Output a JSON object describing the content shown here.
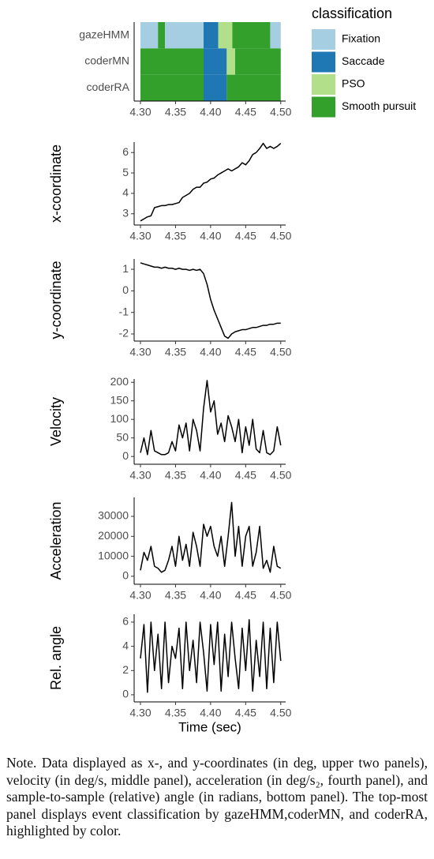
{
  "chart_data": [
    {
      "type": "tile",
      "legend_title": "classification",
      "categories": [
        "gazeHMM",
        "coderMN",
        "coderRA"
      ],
      "classes": [
        {
          "name": "Fixation",
          "color": "#a6cee3"
        },
        {
          "name": "Saccade",
          "color": "#1f78b4"
        },
        {
          "name": "PSO",
          "color": "#b2df8a"
        },
        {
          "name": "Smooth pursuit",
          "color": "#33a02c"
        }
      ],
      "rows": [
        {
          "segments": [
            {
              "start": 4.3,
              "end": 4.325,
              "class": 0
            },
            {
              "start": 4.325,
              "end": 4.335,
              "class": 3
            },
            {
              "start": 4.335,
              "end": 4.39,
              "class": 0
            },
            {
              "start": 4.39,
              "end": 4.411,
              "class": 1
            },
            {
              "start": 4.411,
              "end": 4.431,
              "class": 2
            },
            {
              "start": 4.431,
              "end": 4.485,
              "class": 3
            },
            {
              "start": 4.485,
              "end": 4.5,
              "class": 0
            }
          ]
        },
        {
          "segments": [
            {
              "start": 4.3,
              "end": 4.39,
              "class": 3
            },
            {
              "start": 4.39,
              "end": 4.423,
              "class": 1
            },
            {
              "start": 4.423,
              "end": 4.435,
              "class": 2
            },
            {
              "start": 4.435,
              "end": 4.5,
              "class": 3
            }
          ]
        },
        {
          "segments": [
            {
              "start": 4.3,
              "end": 4.39,
              "class": 3
            },
            {
              "start": 4.39,
              "end": 4.423,
              "class": 1
            },
            {
              "start": 4.423,
              "end": 4.5,
              "class": 3
            }
          ]
        }
      ],
      "xlim": [
        4.291,
        4.507
      ],
      "xticks": [
        {
          "value": 4.3,
          "label": "4.30"
        },
        {
          "value": 4.35,
          "label": "4.35"
        },
        {
          "value": 4.4,
          "label": "4.40"
        },
        {
          "value": 4.45,
          "label": "4.45"
        },
        {
          "value": 4.5,
          "label": "4.50"
        }
      ]
    },
    {
      "type": "line",
      "ylabel": "x-coordinate",
      "color": "#000000",
      "x": [
        4.3,
        4.305,
        4.31,
        4.315,
        4.32,
        4.325,
        4.33,
        4.335,
        4.34,
        4.345,
        4.35,
        4.355,
        4.36,
        4.365,
        4.37,
        4.375,
        4.38,
        4.385,
        4.39,
        4.395,
        4.4,
        4.405,
        4.41,
        4.415,
        4.42,
        4.425,
        4.43,
        4.435,
        4.44,
        4.445,
        4.45,
        4.455,
        4.46,
        4.465,
        4.47,
        4.475,
        4.48,
        4.485,
        4.49,
        4.495,
        4.5
      ],
      "values": [
        2.65,
        2.75,
        2.85,
        2.9,
        3.3,
        3.35,
        3.4,
        3.4,
        3.45,
        3.45,
        3.5,
        3.55,
        3.8,
        3.9,
        4.0,
        4.2,
        4.3,
        4.3,
        4.5,
        4.55,
        4.7,
        4.75,
        4.9,
        5.0,
        5.1,
        5.2,
        5.1,
        5.2,
        5.3,
        5.5,
        5.4,
        5.6,
        5.9,
        6.0,
        6.2,
        6.45,
        6.2,
        6.3,
        6.2,
        6.3,
        6.45
      ],
      "xlim": [
        4.291,
        4.507
      ],
      "xticks": [
        {
          "value": 4.3,
          "label": "4.30"
        },
        {
          "value": 4.35,
          "label": "4.35"
        },
        {
          "value": 4.4,
          "label": "4.40"
        },
        {
          "value": 4.45,
          "label": "4.45"
        },
        {
          "value": 4.5,
          "label": "4.50"
        }
      ],
      "ylim": [
        2.45,
        6.51
      ],
      "yticks": [
        3,
        4,
        5,
        6
      ]
    },
    {
      "type": "line",
      "ylabel": "y-coordinate",
      "color": "#000000",
      "x": [
        4.3,
        4.305,
        4.31,
        4.315,
        4.32,
        4.325,
        4.33,
        4.335,
        4.34,
        4.345,
        4.35,
        4.355,
        4.36,
        4.365,
        4.37,
        4.375,
        4.38,
        4.385,
        4.39,
        4.395,
        4.4,
        4.405,
        4.41,
        4.415,
        4.42,
        4.425,
        4.43,
        4.435,
        4.44,
        4.445,
        4.45,
        4.455,
        4.46,
        4.465,
        4.47,
        4.475,
        4.48,
        4.485,
        4.49,
        4.495,
        4.5
      ],
      "values": [
        1.3,
        1.25,
        1.2,
        1.15,
        1.1,
        1.1,
        1.05,
        1.1,
        1.05,
        1.05,
        1.0,
        1.05,
        1.0,
        1.0,
        0.95,
        1.0,
        0.95,
        1.0,
        0.8,
        0.3,
        -0.4,
        -0.9,
        -1.3,
        -1.7,
        -2.1,
        -2.2,
        -2.0,
        -1.9,
        -1.85,
        -1.8,
        -1.8,
        -1.75,
        -1.7,
        -1.7,
        -1.65,
        -1.6,
        -1.6,
        -1.55,
        -1.55,
        -1.5,
        -1.5
      ],
      "xlim": [
        4.291,
        4.507
      ],
      "xticks": [
        {
          "value": 4.3,
          "label": "4.30"
        },
        {
          "value": 4.35,
          "label": "4.35"
        },
        {
          "value": 4.4,
          "label": "4.40"
        },
        {
          "value": 4.45,
          "label": "4.45"
        },
        {
          "value": 4.5,
          "label": "4.50"
        }
      ],
      "ylim": [
        -2.33,
        1.48
      ],
      "yticks": [
        1,
        0,
        -1,
        -2
      ]
    },
    {
      "type": "line",
      "ylabel": "Velocity",
      "color": "#000000",
      "x": [
        4.3,
        4.305,
        4.31,
        4.315,
        4.32,
        4.325,
        4.33,
        4.335,
        4.34,
        4.345,
        4.35,
        4.355,
        4.36,
        4.365,
        4.37,
        4.375,
        4.38,
        4.385,
        4.39,
        4.395,
        4.4,
        4.405,
        4.41,
        4.415,
        4.42,
        4.425,
        4.43,
        4.435,
        4.44,
        4.445,
        4.45,
        4.455,
        4.46,
        4.465,
        4.47,
        4.475,
        4.48,
        4.485,
        4.49,
        4.495,
        4.5
      ],
      "values": [
        10,
        50,
        5,
        70,
        15,
        10,
        5,
        5,
        10,
        40,
        15,
        85,
        50,
        90,
        15,
        100,
        70,
        15,
        130,
        205,
        120,
        150,
        60,
        90,
        40,
        110,
        80,
        40,
        100,
        10,
        80,
        30,
        100,
        20,
        10,
        70,
        10,
        5,
        15,
        80,
        30
      ],
      "xlim": [
        4.291,
        4.507
      ],
      "xticks": [
        {
          "value": 4.3,
          "label": "4.30"
        },
        {
          "value": 4.35,
          "label": "4.35"
        },
        {
          "value": 4.4,
          "label": "4.40"
        },
        {
          "value": 4.45,
          "label": "4.45"
        },
        {
          "value": 4.5,
          "label": "4.50"
        }
      ],
      "ylim": [
        -21,
        209
      ],
      "yticks": [
        0,
        50,
        100,
        150,
        200
      ]
    },
    {
      "type": "line",
      "ylabel": "Acceleration",
      "color": "#000000",
      "x": [
        4.3,
        4.305,
        4.31,
        4.315,
        4.32,
        4.325,
        4.33,
        4.335,
        4.34,
        4.345,
        4.35,
        4.355,
        4.36,
        4.365,
        4.37,
        4.375,
        4.38,
        4.385,
        4.39,
        4.395,
        4.4,
        4.405,
        4.41,
        4.415,
        4.42,
        4.425,
        4.43,
        4.435,
        4.44,
        4.445,
        4.45,
        4.455,
        4.46,
        4.465,
        4.47,
        4.475,
        4.48,
        4.485,
        4.49,
        4.495,
        4.5
      ],
      "values": [
        3000,
        12000,
        8000,
        15000,
        5000,
        4000,
        2000,
        3000,
        8000,
        15000,
        5000,
        20000,
        8000,
        16000,
        5000,
        22000,
        15000,
        5000,
        26000,
        20000,
        25000,
        15000,
        10000,
        20000,
        5000,
        20000,
        37000,
        10000,
        25000,
        5000,
        20000,
        25000,
        5000,
        12000,
        25000,
        4000,
        8000,
        2000,
        15000,
        5000,
        4000
      ],
      "xlim": [
        4.291,
        4.507
      ],
      "xticks": [
        {
          "value": 4.3,
          "label": "4.30"
        },
        {
          "value": 4.35,
          "label": "4.35"
        },
        {
          "value": 4.4,
          "label": "4.40"
        },
        {
          "value": 4.45,
          "label": "4.45"
        },
        {
          "value": 4.5,
          "label": "4.50"
        }
      ],
      "ylim": [
        -4000,
        39500
      ],
      "yticks": [
        0,
        10000,
        20000,
        30000
      ]
    },
    {
      "type": "line",
      "ylabel": "Rel. angle",
      "xlabel": "Time (sec)",
      "color": "#000000",
      "x": [
        4.3,
        4.305,
        4.31,
        4.315,
        4.32,
        4.325,
        4.33,
        4.335,
        4.34,
        4.345,
        4.35,
        4.355,
        4.36,
        4.365,
        4.37,
        4.375,
        4.38,
        4.385,
        4.39,
        4.395,
        4.4,
        4.405,
        4.41,
        4.415,
        4.42,
        4.425,
        4.43,
        4.435,
        4.44,
        4.445,
        4.45,
        4.455,
        4.46,
        4.465,
        4.47,
        4.475,
        4.48,
        4.485,
        4.49,
        4.495,
        4.5
      ],
      "values": [
        3,
        5.8,
        0.2,
        6,
        2,
        5,
        0.5,
        6,
        1,
        4,
        3,
        5.5,
        0.5,
        6,
        2,
        4.5,
        1,
        6,
        3.5,
        0.3,
        5.8,
        2.5,
        6,
        0.3,
        5,
        1.5,
        6,
        3,
        0.5,
        5.5,
        2,
        6.2,
        0.3,
        4.5,
        1.5,
        6,
        0.5,
        5.5,
        1,
        6,
        2.8
      ],
      "xlim": [
        4.291,
        4.507
      ],
      "xticks": [
        {
          "value": 4.3,
          "label": "4.30"
        },
        {
          "value": 4.35,
          "label": "4.35"
        },
        {
          "value": 4.4,
          "label": "4.40"
        },
        {
          "value": 4.45,
          "label": "4.45"
        },
        {
          "value": 4.5,
          "label": "4.50"
        }
      ],
      "ylim": [
        -0.59,
        6.65
      ],
      "yticks": [
        0,
        2,
        4,
        6
      ]
    }
  ],
  "note": "Note. Data displayed as x-, and y-coordinates (in deg, upper two panels), velocity (in deg/s, middle panel), acceleration (in deg/s₂, fourth panel), and sample-to-sample (relative) angle (in radians, bottom panel). The top-most panel displays event classification by gazeHMM,coderMN, and coderRA, highlighted by color."
}
